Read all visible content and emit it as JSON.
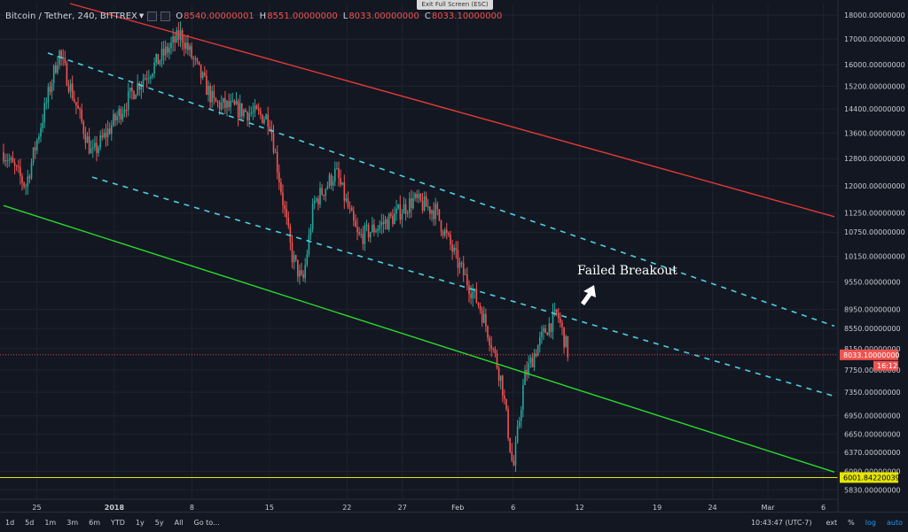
{
  "window": {
    "exit_fullscreen_label": "Exit Full Screen (ESC)"
  },
  "legend": {
    "symbol": "Bitcoin / Tether, 240, BITTREX",
    "open_key": "O",
    "open": "8540.00000001",
    "high_key": "H",
    "high": "8551.00000000",
    "low_key": "L",
    "low": "8033.00000000",
    "close_key": "C",
    "close": "8033.10000000"
  },
  "annotation": {
    "text": "Failed Breakout"
  },
  "toolbar": {
    "ranges": [
      "1d",
      "5d",
      "1m",
      "3m",
      "6m",
      "YTD",
      "1y",
      "5y",
      "All"
    ],
    "goto_label": "Go to...",
    "time": "10:43:47 (UTC-7)",
    "ext_label": "ext",
    "pct_label": "%",
    "log_label": "log",
    "auto_label": "auto"
  },
  "colors": {
    "background": "#131722",
    "up": "#26a69a",
    "down": "#ef5350",
    "red_trendline": "#e53935",
    "green_trendline": "#2bd92b",
    "cyan_channel": "#4dd0e1",
    "support_line": "#e6e600"
  },
  "chart_data": {
    "type": "candlestick",
    "scale": "log",
    "timeframe": "240",
    "x_ticks": [
      "25",
      "2018",
      "8",
      "15",
      "22",
      "27",
      "Feb",
      "6",
      "12",
      "19",
      "24",
      "Mar",
      "6"
    ],
    "y_ticks": [
      "18000.00000000",
      "17000.00000000",
      "16000.00000000",
      "15200.00000000",
      "14400.00000000",
      "13600.00000000",
      "12800.00000000",
      "12000.00000000",
      "11250.00000000",
      "10750.00000000",
      "10150.00000000",
      "9550.00000000",
      "8950.00000000",
      "8550.00000000",
      "8150.00000000",
      "7750.00000000",
      "7350.00000000",
      "6950.00000000",
      "6650.00000000",
      "6370.00000000",
      "6090.00000000",
      "5830.00000000"
    ],
    "ylim": [
      5700,
      18500
    ],
    "last_price_label": "8033.10000000",
    "countdown_label": "16:12",
    "support_label": "6001.84220039",
    "support_value": 6001.8422,
    "trend_points": [
      [
        "2017-12-22",
        13000
      ],
      [
        "2017-12-24",
        12000
      ],
      [
        "2017-12-27",
        16500
      ],
      [
        "2017-12-30",
        12900
      ],
      [
        "2018-01-03",
        15200
      ],
      [
        "2018-01-07",
        17200
      ],
      [
        "2018-01-10",
        14600
      ],
      [
        "2018-01-13",
        14300
      ],
      [
        "2018-01-15",
        14100
      ],
      [
        "2018-01-17",
        10200
      ],
      [
        "2018-01-18",
        9500
      ],
      [
        "2018-01-19",
        11500
      ],
      [
        "2018-01-21",
        12400
      ],
      [
        "2018-01-23",
        10600
      ],
      [
        "2018-01-26",
        11100
      ],
      [
        "2018-01-28",
        11600
      ],
      [
        "2018-01-30",
        11300
      ],
      [
        "2018-02-01",
        10000
      ],
      [
        "2018-02-03",
        9000
      ],
      [
        "2018-02-04",
        8300
      ],
      [
        "2018-02-05",
        7500
      ],
      [
        "2018-02-06",
        6100
      ],
      [
        "2018-02-07",
        7600
      ],
      [
        "2018-02-08",
        8100
      ],
      [
        "2018-02-09",
        8550
      ],
      [
        "2018-02-10",
        8850
      ],
      [
        "2018-02-11",
        8033
      ]
    ],
    "lines": [
      {
        "name": "red",
        "points": [
          [
            "2017-12-28",
            18500
          ],
          [
            "2018-03-07",
            11150
          ]
        ]
      },
      {
        "name": "green",
        "points": [
          [
            "2017-12-22",
            11450
          ],
          [
            "2018-03-07",
            6080
          ]
        ]
      },
      {
        "name": "cyan-upper",
        "points": [
          [
            "2017-12-26",
            16450
          ],
          [
            "2018-03-07",
            8600
          ]
        ]
      },
      {
        "name": "cyan-lower",
        "points": [
          [
            "2017-12-30",
            12250
          ],
          [
            "2018-03-07",
            7280
          ]
        ]
      }
    ]
  }
}
